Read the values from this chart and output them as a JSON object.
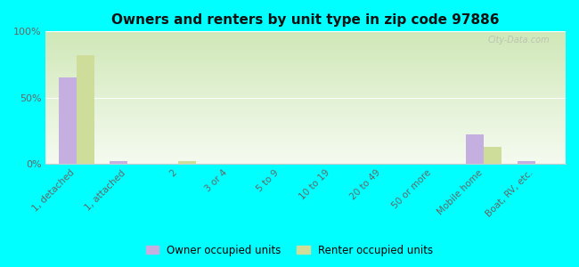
{
  "title": "Owners and renters by unit type in zip code 97886",
  "categories": [
    "1, detached",
    "1, attached",
    "2",
    "3 or 4",
    "5 to 9",
    "10 to 19",
    "20 to 49",
    "50 or more",
    "Mobile home",
    "Boat, RV, etc."
  ],
  "owner_values": [
    65,
    2,
    0,
    0,
    0,
    0,
    0,
    0,
    22,
    2
  ],
  "renter_values": [
    82,
    0,
    2,
    0,
    0,
    0,
    0,
    0,
    13,
    0
  ],
  "owner_color": "#c5aee0",
  "renter_color": "#cedd9a",
  "background_color": "#00ffff",
  "bar_width": 0.35,
  "ylim": [
    0,
    100
  ],
  "yticks": [
    0,
    50,
    100
  ],
  "ytick_labels": [
    "0%",
    "50%",
    "100%"
  ],
  "legend_owner": "Owner occupied units",
  "legend_renter": "Renter occupied units",
  "watermark": "City-Data.com",
  "grad_colors": [
    "#c8dfa0",
    "#eaf4d0",
    "#f5fbee"
  ],
  "grid_color": "#ffffff",
  "spine_color": "#cccccc"
}
